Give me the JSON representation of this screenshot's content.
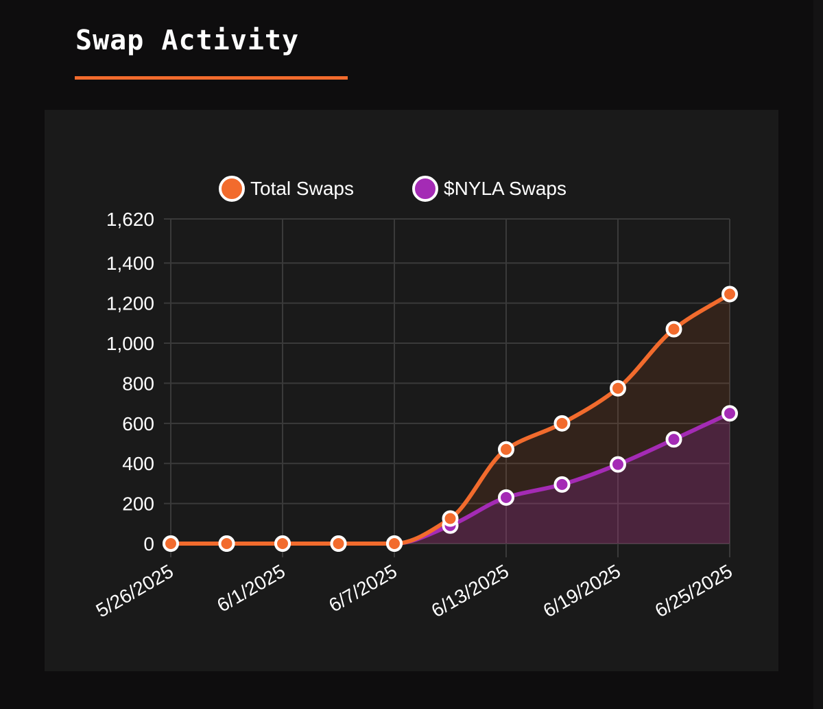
{
  "page": {
    "title": "Swap Activity",
    "accent_color": "#f26b2d"
  },
  "chart_data": {
    "type": "line",
    "title": "",
    "xlabel": "",
    "ylabel": "",
    "x": [
      "5/26/2025",
      "5/29/2025",
      "6/1/2025",
      "6/4/2025",
      "6/7/2025",
      "6/10/2025",
      "6/13/2025",
      "6/16/2025",
      "6/19/2025",
      "6/22/2025",
      "6/25/2025"
    ],
    "x_tick_labels": [
      "5/26/2025",
      "6/1/2025",
      "6/7/2025",
      "6/13/2025",
      "6/19/2025",
      "6/25/2025"
    ],
    "y_tick_labels": [
      "0",
      "200",
      "400",
      "600",
      "800",
      "1,000",
      "1,200",
      "1,400",
      "1,620"
    ],
    "ylim": [
      0,
      1620
    ],
    "grid": true,
    "legend_position": "top",
    "series": [
      {
        "name": "Total Swaps",
        "color": "#f26b2d",
        "area": true,
        "values": [
          0,
          0,
          0,
          0,
          0,
          125,
          470,
          600,
          775,
          1070,
          1245
        ]
      },
      {
        "name": "$NYLA Swaps",
        "color": "#a42bb5",
        "area": true,
        "values": [
          0,
          0,
          0,
          0,
          0,
          90,
          230,
          295,
          395,
          520,
          650
        ]
      }
    ]
  }
}
